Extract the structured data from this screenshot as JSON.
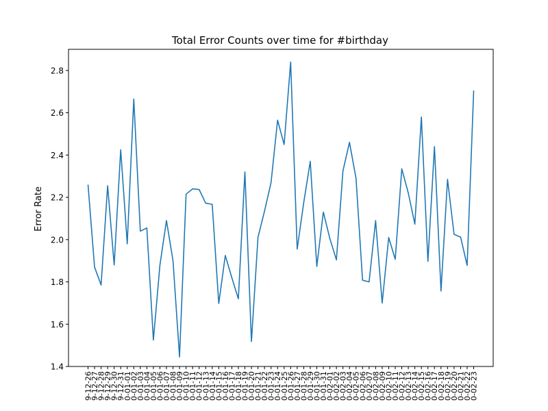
{
  "chart_data": {
    "type": "line",
    "title": "Total Error Counts over time for #birthday",
    "xlabel": "",
    "ylabel": "Error Rate",
    "ylim": [
      1.4,
      2.9
    ],
    "yticks": [
      1.4,
      1.6,
      1.8,
      2.0,
      2.2,
      2.4,
      2.6,
      2.8
    ],
    "ytick_labels": [
      "1.4",
      "1.6",
      "1.8",
      "2.0",
      "2.2",
      "2.4",
      "2.6",
      "2.8"
    ],
    "grid": false,
    "color": "#1f77b4",
    "categories": [
      "9-12-26",
      "9-12-27",
      "9-12-28",
      "9-12-29",
      "9-12-30",
      "9-12-31",
      "0-01-01",
      "0-01-02",
      "0-01-03",
      "0-01-04",
      "0-01-05",
      "0-01-06",
      "0-01-07",
      "0-01-08",
      "0-01-09",
      "0-01-10",
      "0-01-11",
      "0-01-12",
      "0-01-13",
      "0-01-14",
      "0-01-15",
      "0-01-16",
      "0-01-17",
      "0-01-18",
      "0-01-19",
      "0-01-20",
      "0-01-21",
      "0-01-22",
      "0-01-23",
      "0-01-24",
      "0-01-25",
      "0-01-26",
      "0-01-27",
      "0-01-28",
      "0-01-29",
      "0-01-30",
      "0-01-31",
      "0-02-01",
      "0-02-02",
      "0-02-03",
      "0-02-04",
      "0-02-05",
      "0-02-06",
      "0-02-07",
      "0-02-08",
      "0-02-09",
      "0-02-10",
      "0-02-11",
      "0-02-12",
      "0-02-13",
      "0-02-14",
      "0-02-15",
      "0-02-16",
      "0-02-17",
      "0-02-18",
      "0-02-19",
      "0-02-20",
      "0-02-21",
      "0-02-22",
      "0-02-23"
    ],
    "values": [
      2.26,
      1.87,
      1.785,
      2.255,
      1.88,
      2.425,
      1.98,
      2.665,
      2.04,
      2.055,
      1.525,
      1.88,
      2.09,
      1.9,
      1.445,
      2.215,
      2.24,
      2.237,
      2.172,
      2.167,
      1.698,
      1.925,
      1.82,
      1.72,
      2.32,
      1.518,
      2.01,
      2.135,
      2.27,
      2.565,
      2.45,
      2.84,
      1.955,
      2.175,
      2.37,
      1.873,
      2.13,
      2.005,
      1.904,
      2.325,
      2.46,
      2.29,
      1.808,
      1.8,
      2.09,
      1.7,
      2.01,
      1.907,
      2.335,
      2.22,
      2.073,
      2.58,
      1.897,
      2.44,
      1.757,
      2.285,
      2.025,
      2.012,
      1.878,
      2.705
    ]
  }
}
